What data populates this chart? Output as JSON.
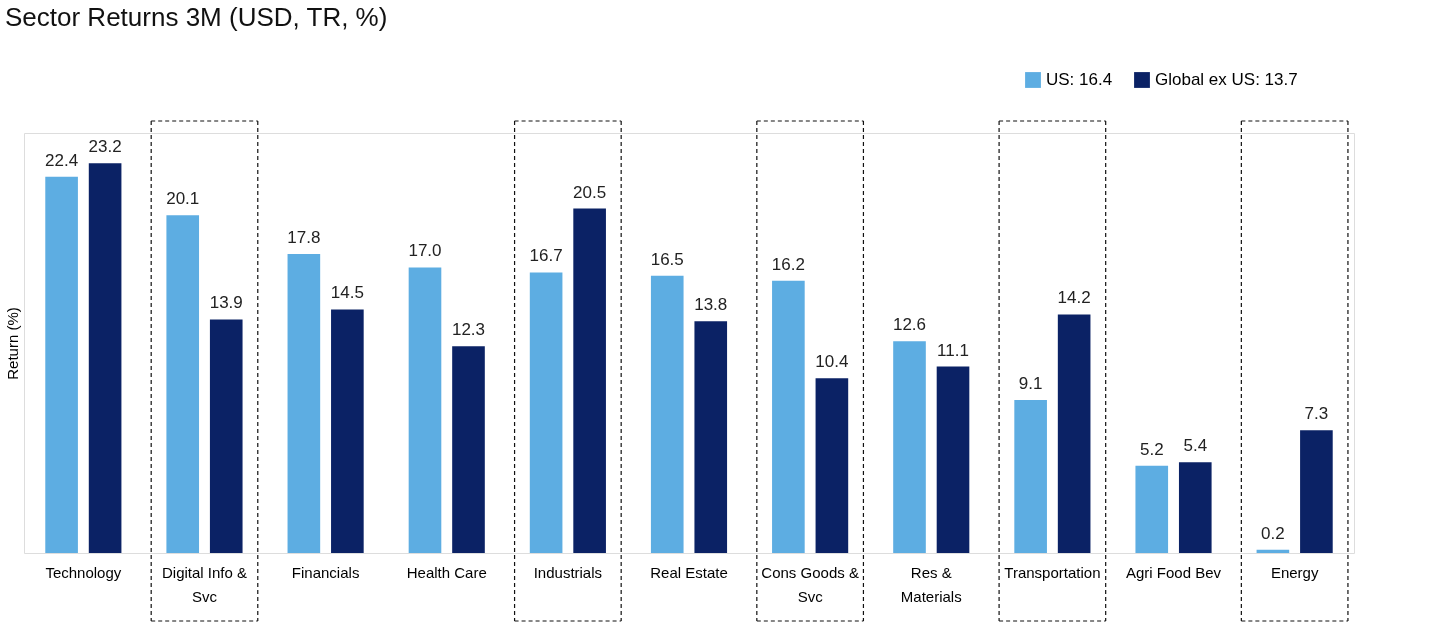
{
  "chart_data": {
    "type": "bar",
    "title": "Sector Returns 3M (USD, TR, %)",
    "ylabel": "Return (%)",
    "categories": [
      "Technology",
      "Digital Info & Svc",
      "Financials",
      "Health Care",
      "Industrials",
      "Real Estate",
      "Cons Goods & Svc",
      "Res & Materials",
      "Transportation",
      "Agri Food Bev",
      "Energy"
    ],
    "series": [
      {
        "name": "US: 16.4",
        "color": "#5dade2",
        "values": [
          22.4,
          20.1,
          17.8,
          17.0,
          16.7,
          16.5,
          16.2,
          12.6,
          9.1,
          5.2,
          0.2
        ],
        "value_labels": [
          "22.4",
          "20.1",
          "17.8",
          "17.0",
          "16.7",
          "16.5",
          "16.2",
          "12.6",
          "9.1",
          "5.2",
          "0.2"
        ]
      },
      {
        "name": "Global ex US: 13.7",
        "color": "#0b2265",
        "values": [
          23.2,
          13.9,
          14.5,
          12.3,
          20.5,
          13.8,
          10.4,
          11.1,
          14.2,
          5.4,
          7.3
        ],
        "value_labels": [
          "23.2",
          "13.9",
          "14.5",
          "12.3",
          "20.5",
          "13.8",
          "10.4",
          "11.1",
          "14.2",
          "5.4",
          "7.3"
        ]
      }
    ],
    "ylim": [
      0,
      25
    ],
    "tick_labels": "x",
    "legend": "top right",
    "grid": false
  }
}
